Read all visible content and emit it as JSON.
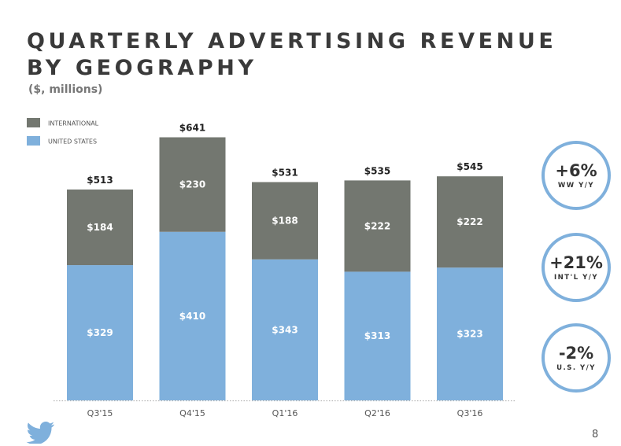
{
  "title_line1": "QUARTERLY ADVERTISING REVENUE",
  "title_line2": "BY GEOGRAPHY",
  "subtitle": "($, millions)",
  "page_number": "8",
  "colors": {
    "international": "#737770",
    "united_states": "#7fb0dc",
    "badge_ring": "#7fb0dc"
  },
  "badges": [
    {
      "value": "+6%",
      "label": "WW Y/Y"
    },
    {
      "value": "+21%",
      "label": "INT'L Y/Y"
    },
    {
      "value": "-2%",
      "label": "U.S. Y/Y"
    }
  ],
  "icons": {
    "logo": "twitter-bird-icon"
  },
  "chart_data": {
    "type": "bar",
    "stacked": true,
    "categories": [
      "Q3'15",
      "Q4'15",
      "Q1'16",
      "Q2'16",
      "Q3'16"
    ],
    "series": [
      {
        "name": "UNITED STATES",
        "values": [
          329,
          410,
          343,
          313,
          323
        ],
        "labels": [
          "$329",
          "$410",
          "$343",
          "$313",
          "$323"
        ]
      },
      {
        "name": "INTERNATIONAL",
        "values": [
          184,
          230,
          188,
          222,
          222
        ],
        "labels": [
          "$184",
          "$230",
          "$188",
          "$222",
          "$222"
        ]
      }
    ],
    "totals": [
      513,
      641,
      531,
      535,
      545
    ],
    "total_labels": [
      "$513",
      "$641",
      "$531",
      "$535",
      "$545"
    ],
    "legend": [
      "INTERNATIONAL",
      "UNITED STATES"
    ],
    "legend_position": "top-left",
    "ylim": [
      0,
      641
    ],
    "grid": false,
    "xlabel": "",
    "ylabel": ""
  }
}
